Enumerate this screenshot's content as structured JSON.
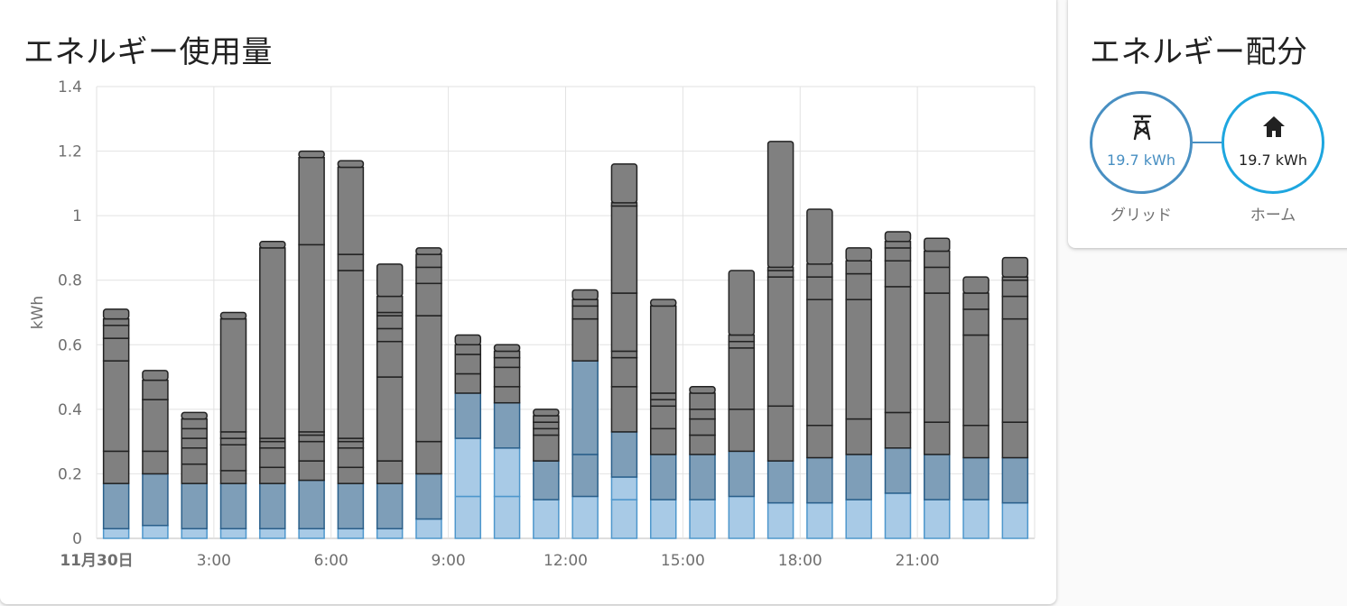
{
  "usage": {
    "title": "エネルギー使用量"
  },
  "distribution": {
    "title": "エネルギー配分",
    "grid": {
      "value": "19.7 kWh",
      "label": "グリッド",
      "icon": "transmission-tower-icon"
    },
    "home": {
      "value": "19.7 kWh",
      "label": "ホーム",
      "icon": "home-icon"
    }
  },
  "colors": {
    "grid_light": "#a8cae6",
    "grid_light_edge": "#4e97cc",
    "grid_mid": "#7e9eb8",
    "grid_mid_edge": "#2a5f8a",
    "gray": "#808080",
    "gray_edge": "#222222"
  },
  "chart_data": {
    "type": "bar",
    "stacked": true,
    "ylabel": "kWh",
    "ylim": [
      0,
      1.4
    ],
    "yticks": [
      0,
      0.2,
      0.4,
      0.6,
      0.8,
      1,
      1.2,
      1.4
    ],
    "ytick_labels": [
      "0",
      "0.2",
      "0.4",
      "0.6",
      "0.8",
      "1",
      "1.2",
      "1.4"
    ],
    "x_tick_labels": [
      {
        "hour": 0,
        "label": "11月30日",
        "bold": true
      },
      {
        "hour": 3,
        "label": "3:00"
      },
      {
        "hour": 6,
        "label": "6:00"
      },
      {
        "hour": 9,
        "label": "9:00"
      },
      {
        "hour": 12,
        "label": "12:00"
      },
      {
        "hour": 15,
        "label": "15:00"
      },
      {
        "hour": 18,
        "label": "18:00"
      },
      {
        "hour": 21,
        "label": "21:00"
      }
    ],
    "grid": true,
    "bars": [
      {
        "hour": 0,
        "light": [
          0.03
        ],
        "mid": [
          0.17
        ],
        "gray": [
          0.27,
          0.55,
          0.62,
          0.66,
          0.68,
          0.71
        ]
      },
      {
        "hour": 1,
        "light": [
          0.04
        ],
        "mid": [
          0.2
        ],
        "gray": [
          0.27,
          0.43,
          0.49,
          0.52
        ]
      },
      {
        "hour": 2,
        "light": [
          0.03
        ],
        "mid": [
          0.17
        ],
        "gray": [
          0.23,
          0.28,
          0.31,
          0.34,
          0.37,
          0.39
        ]
      },
      {
        "hour": 3,
        "light": [
          0.03
        ],
        "mid": [
          0.17
        ],
        "gray": [
          0.21,
          0.29,
          0.31,
          0.33,
          0.68,
          0.7
        ]
      },
      {
        "hour": 4,
        "light": [
          0.03
        ],
        "mid": [
          0.17
        ],
        "gray": [
          0.22,
          0.28,
          0.3,
          0.31,
          0.9,
          0.92
        ]
      },
      {
        "hour": 5,
        "light": [
          0.03
        ],
        "mid": [
          0.18
        ],
        "gray": [
          0.24,
          0.3,
          0.32,
          0.33,
          0.91,
          1.18,
          1.2
        ]
      },
      {
        "hour": 6,
        "light": [
          0.03
        ],
        "mid": [
          0.17
        ],
        "gray": [
          0.22,
          0.28,
          0.3,
          0.31,
          0.83,
          0.88,
          1.15,
          1.17
        ]
      },
      {
        "hour": 7,
        "light": [
          0.03
        ],
        "mid": [
          0.17
        ],
        "gray": [
          0.24,
          0.5,
          0.61,
          0.65,
          0.69,
          0.7,
          0.75,
          0.85
        ]
      },
      {
        "hour": 8,
        "light": [
          0.06
        ],
        "mid": [
          0.2
        ],
        "gray": [
          0.3,
          0.69,
          0.79,
          0.84,
          0.88,
          0.9
        ]
      },
      {
        "hour": 9,
        "light": [
          0.13,
          0.31
        ],
        "mid": [
          0.45
        ],
        "gray": [
          0.51,
          0.57,
          0.6,
          0.63
        ]
      },
      {
        "hour": 10,
        "light": [
          0.13,
          0.28
        ],
        "mid": [
          0.42
        ],
        "gray": [
          0.47,
          0.53,
          0.56,
          0.58,
          0.6
        ]
      },
      {
        "hour": 11,
        "light": [
          0.12
        ],
        "mid": [
          0.24
        ],
        "gray": [
          0.32,
          0.34,
          0.36,
          0.38,
          0.4
        ]
      },
      {
        "hour": 12,
        "light": [
          0.13
        ],
        "mid": [
          0.26,
          0.55
        ],
        "gray": [
          0.68,
          0.72,
          0.74,
          0.77
        ]
      },
      {
        "hour": 13,
        "light": [
          0.12,
          0.19
        ],
        "mid": [
          0.33
        ],
        "gray": [
          0.47,
          0.56,
          0.58,
          0.76,
          1.03,
          1.04,
          1.16
        ]
      },
      {
        "hour": 14,
        "light": [
          0.12
        ],
        "mid": [
          0.26
        ],
        "gray": [
          0.34,
          0.41,
          0.43,
          0.45,
          0.72,
          0.74
        ]
      },
      {
        "hour": 15,
        "light": [
          0.12
        ],
        "mid": [
          0.26
        ],
        "gray": [
          0.32,
          0.37,
          0.4,
          0.45,
          0.47
        ]
      },
      {
        "hour": 16,
        "light": [
          0.13
        ],
        "mid": [
          0.27
        ],
        "gray": [
          0.4,
          0.59,
          0.61,
          0.63,
          0.83
        ]
      },
      {
        "hour": 17,
        "light": [
          0.11
        ],
        "mid": [
          0.24
        ],
        "gray": [
          0.41,
          0.81,
          0.83,
          0.84,
          1.23
        ]
      },
      {
        "hour": 18,
        "light": [
          0.11
        ],
        "mid": [
          0.25
        ],
        "gray": [
          0.35,
          0.74,
          0.81,
          0.85,
          1.02
        ]
      },
      {
        "hour": 19,
        "light": [
          0.12
        ],
        "mid": [
          0.26
        ],
        "gray": [
          0.37,
          0.74,
          0.82,
          0.86,
          0.9
        ]
      },
      {
        "hour": 20,
        "light": [
          0.14
        ],
        "mid": [
          0.28
        ],
        "gray": [
          0.39,
          0.78,
          0.86,
          0.9,
          0.92,
          0.95
        ]
      },
      {
        "hour": 21,
        "light": [
          0.12
        ],
        "mid": [
          0.26
        ],
        "gray": [
          0.36,
          0.76,
          0.84,
          0.89,
          0.93
        ]
      },
      {
        "hour": 22,
        "light": [
          0.12
        ],
        "mid": [
          0.25
        ],
        "gray": [
          0.35,
          0.63,
          0.71,
          0.76,
          0.81
        ]
      },
      {
        "hour": 23,
        "light": [
          0.11
        ],
        "mid": [
          0.25
        ],
        "gray": [
          0.36,
          0.68,
          0.75,
          0.8,
          0.81,
          0.87
        ]
      }
    ]
  }
}
